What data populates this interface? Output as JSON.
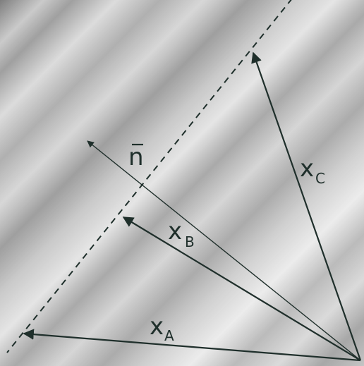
{
  "colors": {
    "line": "#1f2f2b",
    "background_light": "#e6e6e6",
    "background_dark": "#8a8a8a"
  },
  "labels": {
    "n_vector": "n",
    "xA_main": "x",
    "xA_sub": "A",
    "xB_main": "x",
    "xB_sub": "B",
    "xC_main": "x",
    "xC_sub": "C"
  }
}
